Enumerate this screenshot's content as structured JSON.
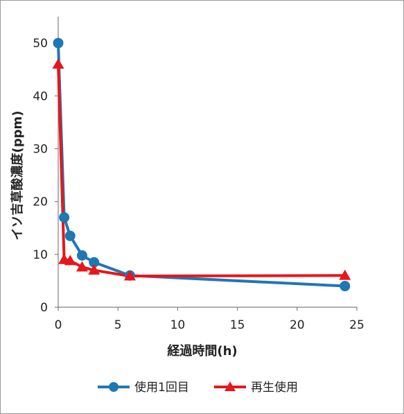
{
  "chart_data": {
    "type": "line",
    "xlabel": "経過時間(h)",
    "ylabel": "イソ吉草酸濃度(ppm)",
    "xlim": [
      0,
      25
    ],
    "ylim": [
      0,
      55
    ],
    "xticks": [
      0,
      5,
      10,
      15,
      20,
      25
    ],
    "yticks": [
      0,
      10,
      20,
      30,
      40,
      50
    ],
    "grid": false,
    "legend_position": "bottom",
    "series": [
      {
        "name": "使用1回目",
        "color": "#1f77b4",
        "marker": "circle",
        "x": [
          0,
          0.5,
          1,
          2,
          3,
          6,
          24
        ],
        "y": [
          50,
          17,
          13.5,
          9.8,
          8.5,
          6,
          4
        ]
      },
      {
        "name": "再生使用",
        "color": "#e8161b",
        "marker": "triangle",
        "x": [
          0,
          0.5,
          1,
          2,
          3,
          6,
          24
        ],
        "y": [
          46,
          9,
          8.8,
          7.6,
          7,
          5.9,
          6
        ]
      }
    ]
  }
}
